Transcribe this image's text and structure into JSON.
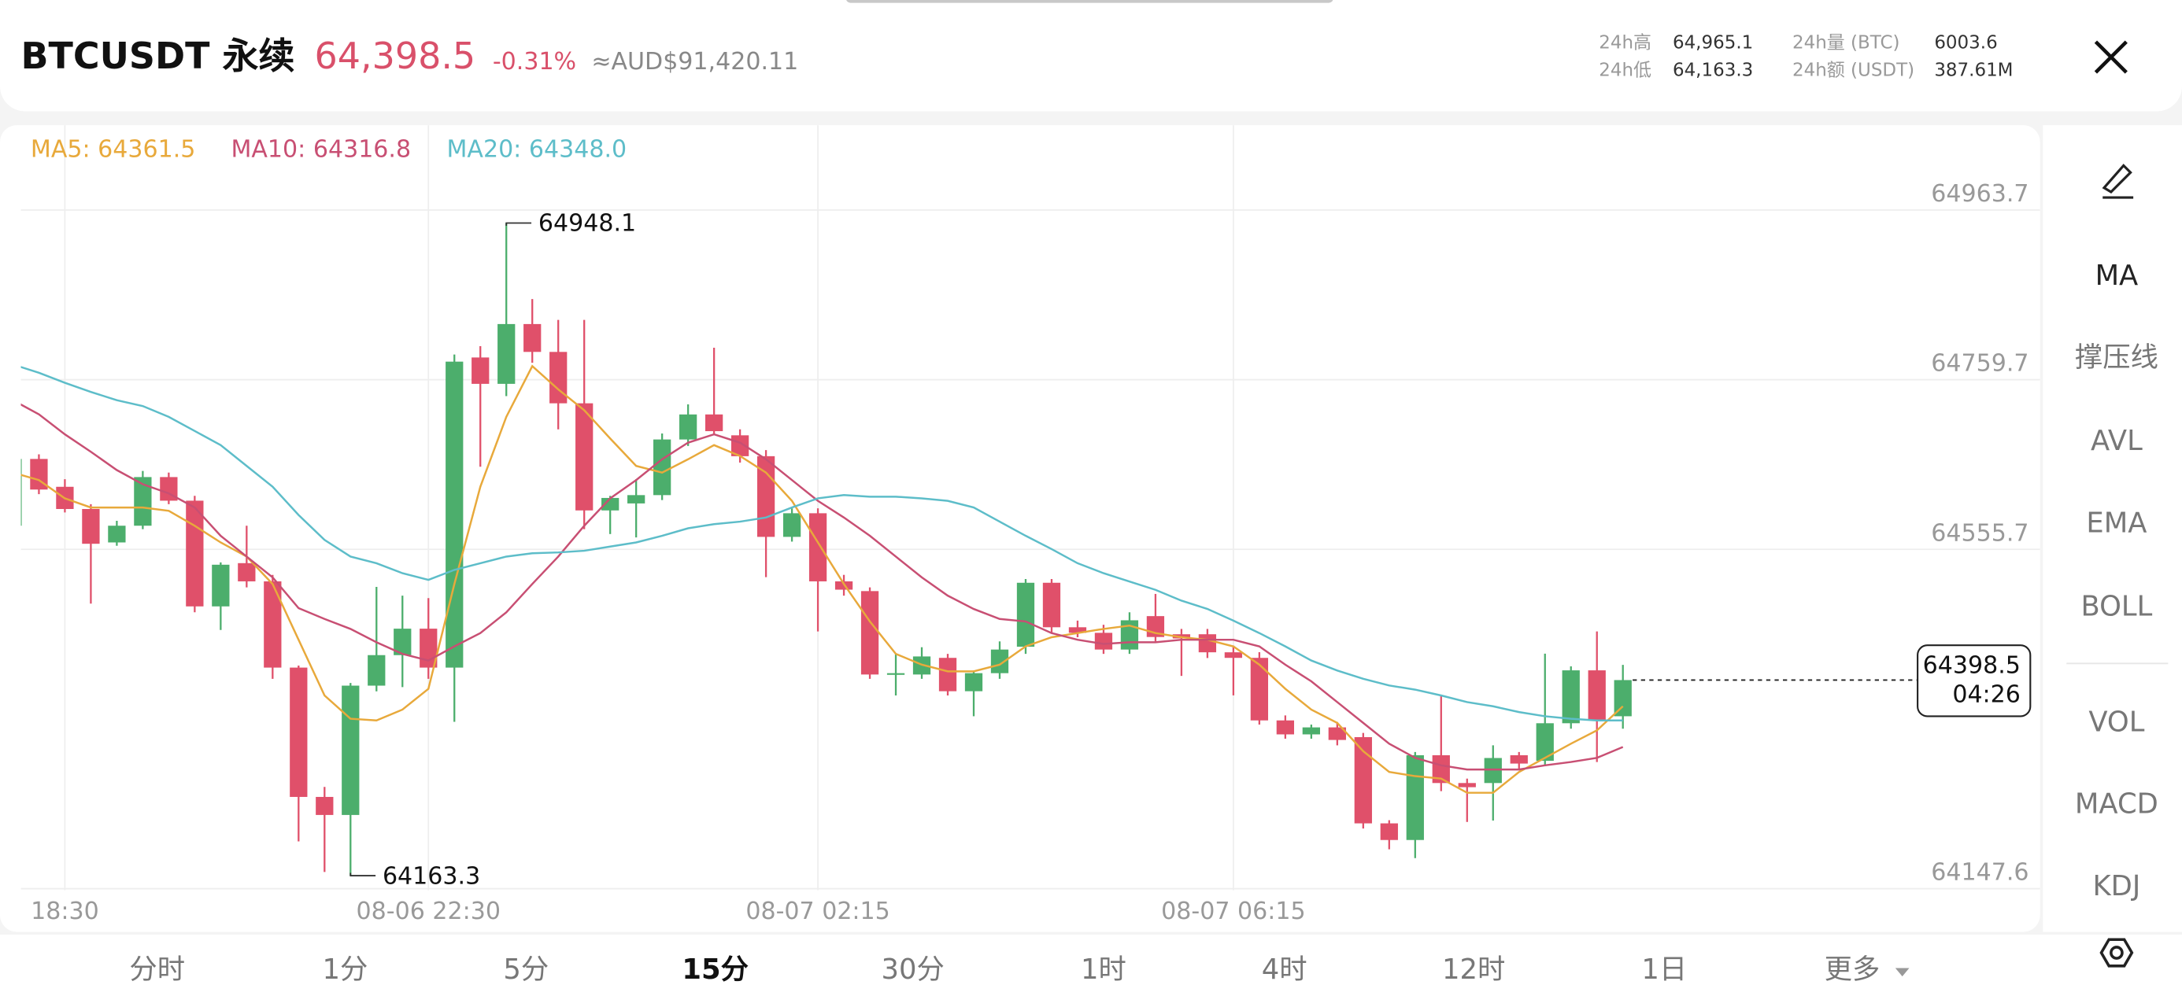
{
  "header": {
    "symbol": "BTCUSDT 永续",
    "price": "64,398.5",
    "change": "-0.31%",
    "converted": "≈AUD$91,420.11",
    "stats": [
      {
        "label": "24h高",
        "value": "64,965.1"
      },
      {
        "label": "24h低",
        "value": "64,163.3"
      },
      {
        "label": "24h量 (BTC)",
        "value": "6003.6"
      },
      {
        "label": "24h额 (USDT)",
        "value": "387.61M"
      }
    ]
  },
  "chart_data": {
    "type": "candlestick",
    "up_color": "#4cae6c",
    "down_color": "#e0506a",
    "categories": [
      null,
      null,
      "18:30",
      null,
      null,
      null,
      null,
      null,
      null,
      null,
      null,
      null,
      null,
      null,
      null,
      null,
      "08-06 22:30",
      null,
      null,
      null,
      null,
      null,
      null,
      null,
      null,
      null,
      null,
      null,
      null,
      null,
      null,
      "08-07 02:15",
      null,
      null,
      null,
      null,
      null,
      null,
      null,
      null,
      null,
      null,
      null,
      null,
      null,
      null,
      null,
      "08-07 06:15",
      null,
      null,
      null,
      null,
      null,
      null,
      null,
      null,
      null,
      null,
      null,
      null,
      null,
      null,
      null
    ],
    "candles": {
      "open": [
        64584.1,
        64664.4,
        64630.9,
        64604.2,
        64564.0,
        64584.1,
        64642.6,
        64614.2,
        64487.1,
        64539.1,
        64517.2,
        64413.5,
        64258.0,
        64236.3,
        64391.8,
        64428.5,
        64460.3,
        64413.5,
        64786.4,
        64754.7,
        64826.6,
        64793.1,
        64731.3,
        64602.5,
        64610.9,
        64620.9,
        64687.8,
        64717.9,
        64692.8,
        64667.7,
        64570.7,
        64599.1,
        64517.2,
        64505.5,
        64405.2,
        64405.2,
        64425.2,
        64385.1,
        64406.8,
        64438.6,
        64515.5,
        64462.0,
        64455.3,
        64435.2,
        64475.4,
        64453.6,
        64453.6,
        64431.9,
        64425.2,
        64350.0,
        64333.2,
        64341.6,
        64329.9,
        64226.2,
        64206.2,
        64308.1,
        64274.7,
        64274.7,
        64308.1,
        64301.4,
        64346.6,
        64410.2,
        64355.0
      ],
      "high": [
        64667.7,
        64670.0,
        64640.0,
        64610.0,
        64590.0,
        64650.0,
        64648.0,
        64620.0,
        64540.0,
        64584.1,
        64525.0,
        64416.0,
        64270.0,
        64395.0,
        64510.5,
        64500.0,
        64497.1,
        64790.0,
        64800.0,
        64948.1,
        64856.7,
        64831.6,
        64831.6,
        64620.0,
        64640.0,
        64695.0,
        64730.0,
        64798.1,
        64700.0,
        64675.0,
        64605.0,
        64605.0,
        64525.0,
        64510.0,
        64430.0,
        64438.0,
        64430.0,
        64410.0,
        64445.0,
        64520.0,
        64520.0,
        64470.0,
        64465.0,
        64480.0,
        64502.1,
        64460.0,
        64460.0,
        64440.0,
        64432.0,
        64356.0,
        64345.0,
        64348.0,
        64335.0,
        64230.0,
        64312.0,
        64380.0,
        64280.0,
        64320.0,
        64312.0,
        64430.2,
        64415.0,
        64457.0,
        64416.8
      ],
      "low": [
        64560.0,
        64622.0,
        64600.0,
        64490.4,
        64560.0,
        64580.0,
        64610.0,
        64480.0,
        64458.7,
        64510.0,
        64400.0,
        64204.5,
        64167.7,
        64163.3,
        64385.0,
        64390.0,
        64400.0,
        64348.3,
        64655.0,
        64740.0,
        64780.0,
        64700.0,
        64580.0,
        64574.1,
        64570.0,
        64615.0,
        64680.0,
        64695.0,
        64660.0,
        64522.2,
        64565.0,
        64457.0,
        64500.0,
        64400.0,
        64380.0,
        64400.0,
        64380.0,
        64355.0,
        64400.0,
        64430.0,
        64455.0,
        64450.0,
        64430.0,
        64430.0,
        64445.0,
        64403.5,
        64425.0,
        64380.1,
        64345.0,
        64328.0,
        64328.0,
        64320.0,
        64220.0,
        64195.0,
        64184.4,
        64265.0,
        64227.9,
        64229.6,
        64290.0,
        64295.0,
        64340.0,
        64300.0,
        64340.0
      ],
      "close": [
        64664.4,
        64627.6,
        64604.2,
        64562.4,
        64584.1,
        64642.6,
        64614.2,
        64487.1,
        64537.2,
        64517.2,
        64413.5,
        64258.0,
        64236.3,
        64391.8,
        64428.5,
        64460.3,
        64413.5,
        64781.4,
        64754.7,
        64826.6,
        64793.1,
        64731.3,
        64602.5,
        64617.5,
        64620.9,
        64687.8,
        64717.9,
        64697.8,
        64667.7,
        64570.7,
        64599.1,
        64517.2,
        64507.2,
        64405.2,
        64406.8,
        64426.9,
        64385.1,
        64406.8,
        64435.2,
        64515.5,
        64462.0,
        64455.3,
        64435.2,
        64470.4,
        64450.3,
        64448.6,
        64431.9,
        64425.2,
        64350.0,
        64333.2,
        64341.6,
        64326.5,
        64226.2,
        64206.2,
        64308.1,
        64274.7,
        64269.7,
        64304.8,
        64298.1,
        64346.6,
        64410.2,
        64350.0,
        64398.5
      ]
    },
    "series": [
      {
        "name": "MA5: 64361.5",
        "color": "#e8a93b",
        "values": [
          64648,
          64639,
          64617,
          64606,
          64606,
          64606,
          64602,
          64584,
          64564,
          64547,
          64514,
          64447,
          64380,
          64352,
          64350,
          64363,
          64388,
          64514,
          64631,
          64715,
          64776,
          64748,
          64723,
          64689,
          64656,
          64648,
          64664,
          64681,
          64668,
          64648,
          64614,
          64564,
          64514,
          64469,
          64430,
          64417,
          64409,
          64409,
          64417,
          64439,
          64450,
          64455,
          64460,
          64464,
          64455,
          64450,
          64447,
          64439,
          64417,
          64388,
          64363,
          64347,
          64313,
          64288,
          64283,
          64280,
          64263,
          64263,
          64288,
          64305,
          64322,
          64338,
          64367
        ]
      },
      {
        "name": "MA10: 64316.8",
        "color": "#c84f73",
        "values": [
          64735,
          64718,
          64694,
          64673,
          64651,
          64634,
          64623,
          64606,
          64572,
          64547,
          64522,
          64485,
          64472,
          64460,
          64444,
          64430,
          64422,
          64439,
          64455,
          64480,
          64514,
          64547,
          64584,
          64617,
          64639,
          64664,
          64684,
          64694,
          64684,
          64664,
          64639,
          64614,
          64594,
          64572,
          64547,
          64522,
          64500,
          64484,
          64472,
          64469,
          64455,
          64447,
          64442,
          64444,
          64444,
          64447,
          64447,
          64447,
          64439,
          64417,
          64397,
          64372,
          64347,
          64322,
          64305,
          64296,
          64291,
          64291,
          64291,
          64296,
          64300,
          64305,
          64318
        ]
      },
      {
        "name": "MA20: 64348.0",
        "color": "#5dbdc9",
        "values": [
          64778,
          64768,
          64756,
          64745,
          64735,
          64728,
          64715,
          64698,
          64681,
          64656,
          64631,
          64597,
          64567,
          64547,
          64539,
          64527,
          64519,
          64531,
          64539,
          64547,
          64551,
          64552,
          64554,
          64559,
          64564,
          64572,
          64581,
          64586,
          64589,
          64594,
          64606,
          64617,
          64621,
          64619,
          64619,
          64617,
          64614,
          64606,
          64589,
          64572,
          64556,
          64539,
          64527,
          64517,
          64507,
          64494,
          64484,
          64470,
          64455,
          64439,
          64422,
          64410,
          64400,
          64392,
          64387,
          64380,
          64372,
          64367,
          64360,
          64355,
          64352,
          64350,
          64350
        ]
      }
    ],
    "ylim": [
      64145.9,
      65065.7
    ],
    "yticks": [
      64147.6,
      64555.7,
      64759.7,
      64963.7
    ],
    "grid": true,
    "high_label": 64948.1,
    "low_label": 64163.3,
    "last_price": {
      "value": 64398.5,
      "countdown": "04:26"
    }
  },
  "sidebar": [
    "MA",
    "撑压线",
    "AVL",
    "EMA",
    "BOLL",
    "VOL",
    "MACD",
    "KDJ"
  ],
  "timeframes": [
    "分时",
    "1分",
    "5分",
    "15分",
    "30分",
    "1时",
    "4时",
    "12时",
    "1日",
    "更多"
  ],
  "active_timeframe": "15分"
}
